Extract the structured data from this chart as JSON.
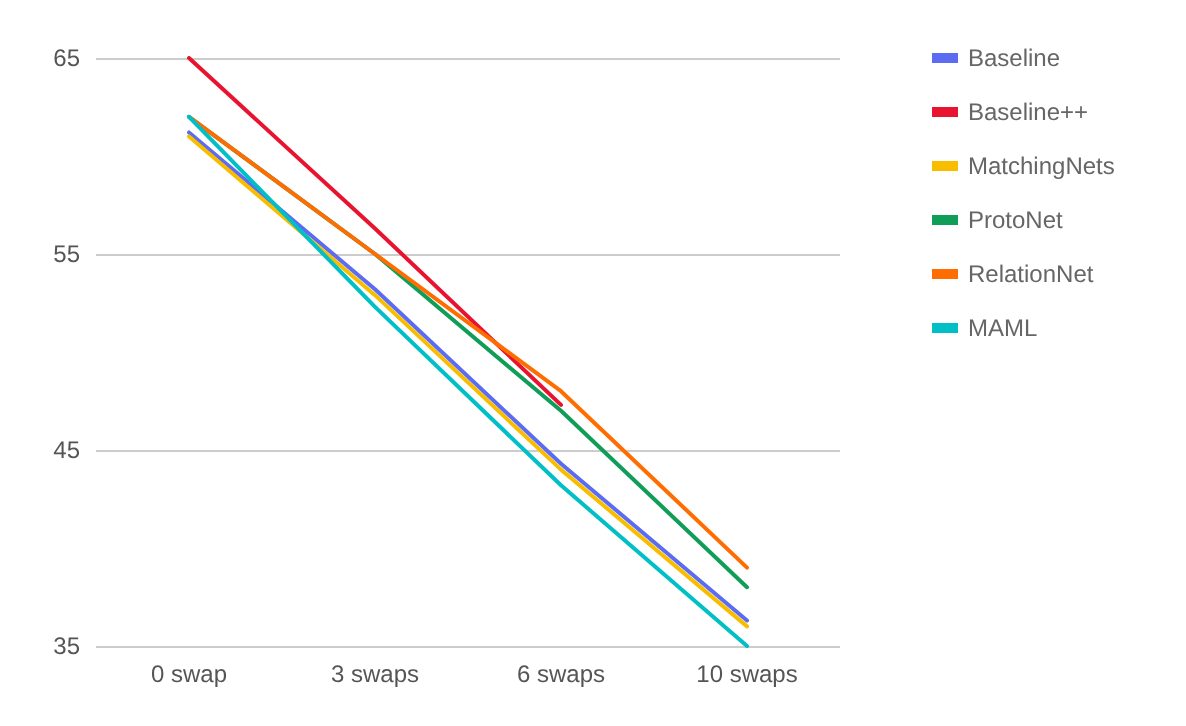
{
  "chart_data": {
    "type": "line",
    "categories": [
      "0 swap",
      "3 swaps",
      "6 swaps",
      "10 swaps"
    ],
    "series": [
      {
        "name": "Baseline",
        "color": "#5b6cf2",
        "values": [
          61.2,
          53.2,
          44.3,
          36.3
        ]
      },
      {
        "name": "Baseline++",
        "color": "#e8132f",
        "values": [
          65,
          56.3,
          47.3,
          null
        ]
      },
      {
        "name": "MatchingNets",
        "color": "#f9bd00",
        "values": [
          61,
          52.9,
          44,
          36
        ]
      },
      {
        "name": "ProtoNet",
        "color": "#0f9d58",
        "values": [
          62,
          55,
          47,
          38
        ]
      },
      {
        "name": "RelationNet",
        "color": "#ff6d00",
        "values": [
          62,
          55,
          48,
          39
        ]
      },
      {
        "name": "MAML",
        "color": "#00bfc6",
        "values": [
          62,
          52.3,
          43.2,
          35
        ]
      }
    ],
    "ylim": [
      35,
      65
    ],
    "yticks": [
      35,
      45,
      55,
      65
    ],
    "grid": "y",
    "legend": "right",
    "marker": "none",
    "line_style": "solid"
  }
}
